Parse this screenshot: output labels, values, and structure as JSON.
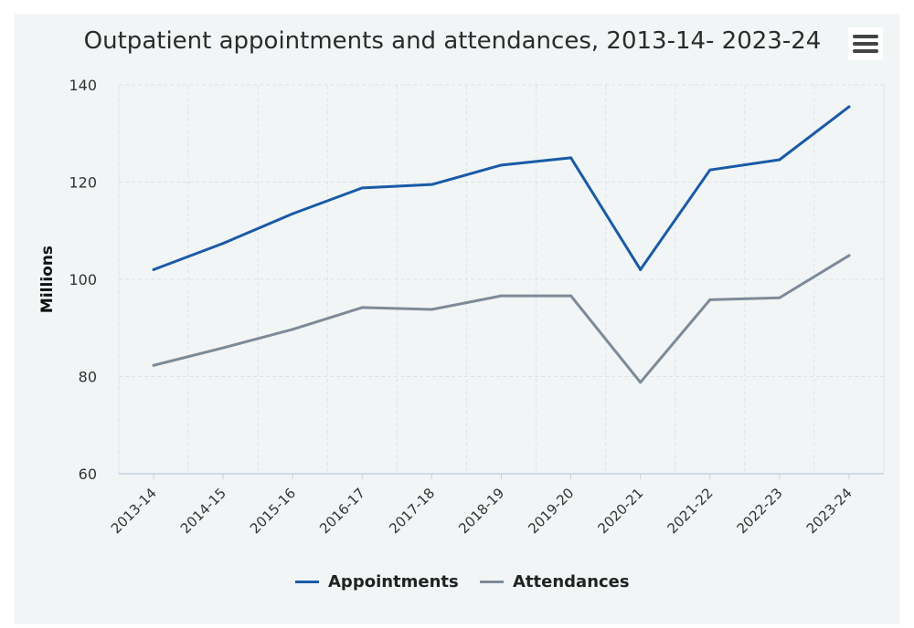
{
  "chart_data": {
    "type": "line",
    "title": "Outpatient appointments and attendances, 2013-14- 2023-24",
    "ylabel": "Millions",
    "xlabel": "",
    "categories": [
      "2013-14",
      "2014-15",
      "2015-16",
      "2016-17",
      "2017-18",
      "2018-19",
      "2019-20",
      "2020-21",
      "2021-22",
      "2022-23",
      "2023-24"
    ],
    "ylim": [
      60,
      140
    ],
    "yticks": [
      60,
      80,
      100,
      120,
      140
    ],
    "grid": true,
    "legend_position": "bottom",
    "series": [
      {
        "name": "Appointments",
        "color": "#1a5aa6",
        "values": [
          102.0,
          107.4,
          113.5,
          118.8,
          119.5,
          123.5,
          125.0,
          102.0,
          122.5,
          124.6,
          135.5
        ]
      },
      {
        "name": "Attendances",
        "color": "#7d8a98",
        "values": [
          82.3,
          85.9,
          89.7,
          94.2,
          93.8,
          96.6,
          96.6,
          78.8,
          95.8,
          96.2,
          104.9
        ]
      }
    ]
  },
  "menu_icon": "hamburger-menu-icon"
}
